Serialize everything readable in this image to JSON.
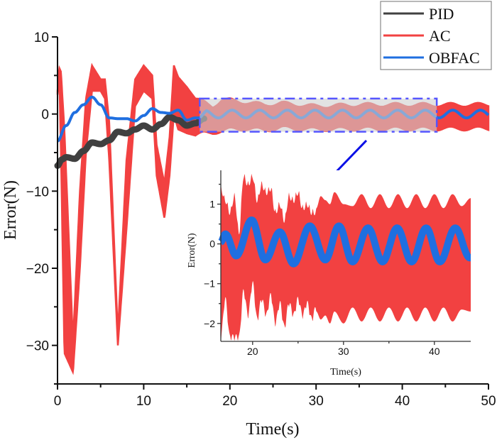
{
  "chart_data": {
    "type": "line",
    "title": "",
    "xlabel": "Time(s)",
    "ylabel": "Error(N)",
    "xlim": [
      0,
      50
    ],
    "ylim": [
      -35,
      10
    ],
    "xticks": [
      0,
      10,
      20,
      30,
      40,
      50
    ],
    "xtick_labels": [
      "0",
      "10",
      "20",
      "30",
      "40",
      "50"
    ],
    "yticks": [
      10,
      0,
      -10,
      -20,
      -30
    ],
    "ytick_labels": [
      "10",
      "0",
      "−10",
      "−20",
      "−30"
    ],
    "grid": false,
    "legend": {
      "placement": "top-right",
      "entries": [
        "PID",
        "AC",
        "OBFAC"
      ]
    },
    "series": [
      {
        "name": "PID",
        "color": "#404040",
        "style": "band",
        "description": "Starts near -6.5, rises with small ripples to near 0 by ~15 s, then hidden behind other series",
        "x": [
          0,
          0.5,
          1,
          2,
          3,
          4,
          5,
          6,
          7,
          8,
          9,
          10,
          11,
          12,
          13,
          14,
          15,
          16,
          17
        ],
        "y": [
          -6.7,
          -5.9,
          -5.6,
          -5.8,
          -4.8,
          -3.7,
          -3.9,
          -3.4,
          -2.3,
          -2.5,
          -2.0,
          -1.5,
          -2.0,
          -1.3,
          -0.4,
          -0.8,
          -1.5,
          -1.2,
          -0.6
        ],
        "band_halfwidth": 0.5
      },
      {
        "name": "AC",
        "color": "#f24141",
        "style": "envelope",
        "description": "Large oscillations: dips to about -33 near t=1.8 s, -30 near t=7 s, -13 near t=12.4 s; peaks near +6; settles into a band of roughly +1 to -2 after ~25 s",
        "x": [
          0,
          0.2,
          0.4,
          0.8,
          1.8,
          2.6,
          3.3,
          4.0,
          5.0,
          5.5,
          6.0,
          7.0,
          8.0,
          9.0,
          10.0,
          11.0,
          11.5,
          12.4,
          13.0,
          13.5,
          14.0,
          15.0,
          16.0,
          17.0,
          18.0,
          19.0,
          20.0,
          22.0,
          24.0,
          26.0,
          28.0,
          30.0,
          35.0,
          40.0,
          44.0,
          47.0,
          50.0
        ],
        "upper": [
          3.0,
          6.0,
          5.5,
          -2.0,
          -29.5,
          -10.0,
          2.0,
          6.3,
          4.5,
          4.5,
          -1.0,
          -28.5,
          -6.0,
          4.5,
          6.3,
          5.0,
          -4.0,
          -9.0,
          -3.0,
          6.3,
          4.8,
          3.5,
          2.0,
          1.5,
          1.0,
          1.8,
          1.8,
          1.5,
          1.2,
          1.4,
          1.2,
          1.0,
          1.2,
          1.2,
          1.2,
          1.2,
          1.2
        ],
        "lower": [
          2.5,
          5.0,
          -5.0,
          -31.0,
          -33.5,
          -20.0,
          -5.0,
          3.0,
          3.0,
          2.0,
          -6.0,
          -30.0,
          -15.0,
          1.0,
          3.0,
          2.0,
          -8.0,
          -13.5,
          -8.0,
          0.0,
          -2.0,
          -2.5,
          -2.8,
          -2.5,
          -2.4,
          -2.2,
          -2.0,
          -1.9,
          -2.1,
          -1.8,
          -1.9,
          -2.0,
          -1.9,
          -1.9,
          -1.9,
          -1.9,
          -1.9
        ]
      },
      {
        "name": "OBFAC",
        "color": "#1f6fe0",
        "style": "line",
        "description": "Starts near -3.5, peaks about +2.2 at ~4 s, then settles into a sinusoid with amplitude ~0.5 and period ~3.2 s around 0",
        "x": [
          0,
          1,
          2,
          3,
          4,
          5,
          6,
          7,
          8,
          9,
          10,
          11,
          12,
          13,
          14,
          15,
          16
        ],
        "y": [
          -3.5,
          -1.5,
          0.2,
          1.2,
          2.2,
          1.2,
          -0.5,
          -0.6,
          -0.6,
          -0.9,
          -0.2,
          0.7,
          0.2,
          0.1,
          0.5,
          -0.8,
          -0.5
        ],
        "steady_state": {
          "start": 16.5,
          "amplitude": 0.5,
          "period_s": 3.2,
          "offset": 0
        }
      }
    ],
    "zoom_box": {
      "x_range": [
        16.5,
        44
      ],
      "y_range": [
        -2.3,
        2.0
      ],
      "style": "dash-dot",
      "color": "#5555ff"
    },
    "inset": {
      "xlabel": "Time(s)",
      "ylabel": "Error(N)",
      "xlim": [
        16.5,
        44
      ],
      "ylim": [
        -2.45,
        1.85
      ],
      "xticks": [
        20,
        30,
        40
      ],
      "xtick_labels": [
        "20",
        "30",
        "40"
      ],
      "yticks": [
        1,
        0,
        -1,
        -2
      ],
      "ytick_labels": [
        "1",
        "0",
        "−1",
        "−2"
      ],
      "series": [
        {
          "name": "AC",
          "x": [
            16.5,
            17.0,
            17.5,
            18.0,
            18.5,
            19.0,
            19.5,
            20.0,
            20.5,
            21.0,
            21.5,
            22.0,
            22.5,
            23.0,
            23.5,
            24.0,
            24.5,
            25.0,
            25.5,
            26.0,
            26.5,
            27.0,
            27.5,
            28.0,
            28.5,
            29.0,
            30.0,
            31.0,
            32.0,
            33.0,
            34.0,
            35.0,
            36.0,
            37.0,
            38.0,
            39.0,
            40.0,
            41.0,
            42.0,
            43.0,
            44.0
          ],
          "upper": [
            1.5,
            1.2,
            0.9,
            1.3,
            0.4,
            1.8,
            1.6,
            1.8,
            1.2,
            1.6,
            1.4,
            1.5,
            0.9,
            1.1,
            0.7,
            1.3,
            1.2,
            1.4,
            1.0,
            1.1,
            0.9,
            0.9,
            1.2,
            1.1,
            1.0,
            1.3,
            1.0,
            0.95,
            1.25,
            0.9,
            1.25,
            0.9,
            1.25,
            0.9,
            1.25,
            0.9,
            1.25,
            0.9,
            1.25,
            0.95,
            1.15
          ],
          "lower": [
            -2.45,
            -1.5,
            -2.45,
            -2.45,
            -2.45,
            -1.3,
            -1.9,
            -1.1,
            -2.0,
            -1.5,
            -1.9,
            -1.4,
            -2.1,
            -1.6,
            -2.2,
            -1.6,
            -1.9,
            -1.5,
            -1.9,
            -1.6,
            -2.0,
            -1.7,
            -1.9,
            -1.8,
            -2.0,
            -1.7,
            -2.0,
            -1.6,
            -1.95,
            -1.6,
            -1.95,
            -1.6,
            -1.95,
            -1.6,
            -1.95,
            -1.6,
            -1.95,
            -1.6,
            -1.95,
            -1.65,
            -1.7
          ]
        },
        {
          "name": "OBFAC",
          "x": [
            16.5,
            17.0,
            18.2,
            19.9,
            21.4,
            23.0,
            24.5,
            26.3,
            28.0,
            29.5,
            31.0,
            32.7,
            34.3,
            35.9,
            37.5,
            39.1,
            40.6,
            42.3,
            43.9
          ],
          "y": [
            0.05,
            0.25,
            -0.3,
            0.6,
            -0.4,
            0.3,
            -0.5,
            0.45,
            -0.4,
            0.45,
            -0.45,
            0.4,
            -0.45,
            0.4,
            -0.45,
            0.4,
            -0.45,
            0.4,
            -0.35
          ],
          "band_halfwidth": 0.13
        }
      ]
    }
  }
}
